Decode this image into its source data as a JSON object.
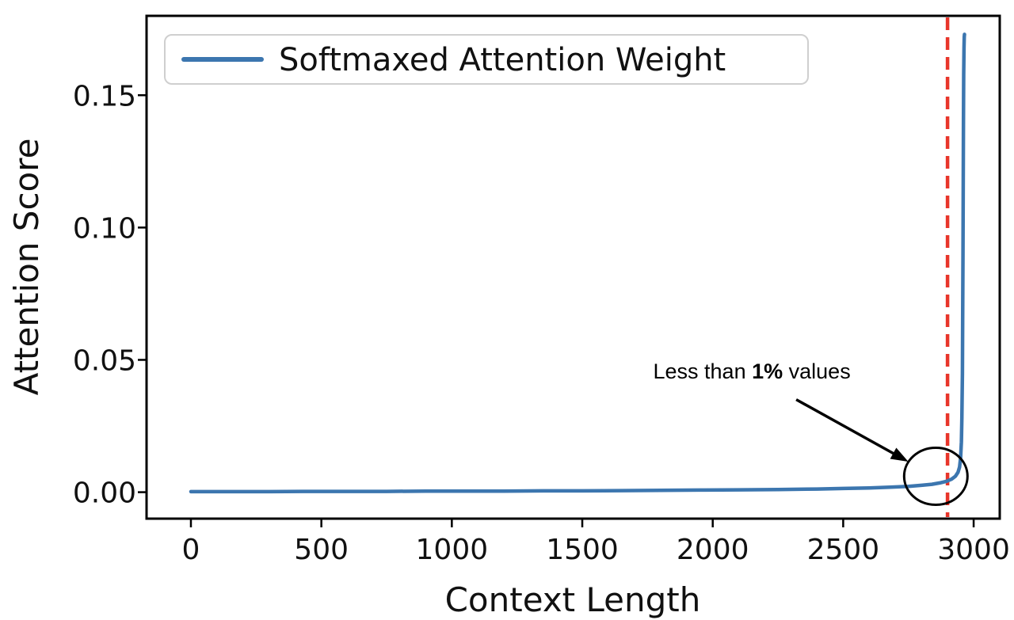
{
  "chart_data": {
    "type": "line",
    "title": "",
    "xlabel": "Context Length",
    "ylabel": "Attention Score",
    "xlim": [
      -170,
      3100
    ],
    "ylim": [
      -0.01,
      0.18
    ],
    "x_ticks": [
      0,
      500,
      1000,
      1500,
      2000,
      2500,
      3000
    ],
    "y_ticks": [
      0,
      0.05,
      0.1,
      0.15
    ],
    "y_tick_labels": [
      "0.00",
      "0.05",
      "0.10",
      "0.15"
    ],
    "grid": false,
    "background": "#ffffff",
    "axis_color": "#000000",
    "legend": {
      "position": "upper left",
      "entries": [
        {
          "label": "Softmaxed Attention Weight",
          "color": "#3c76af"
        }
      ]
    },
    "series": [
      {
        "name": "Softmaxed Attention Weight",
        "color": "#3c76af",
        "points": [
          [
            0,
            0.0002
          ],
          [
            150,
            0.0002
          ],
          [
            300,
            0.0002
          ],
          [
            450,
            0.0003
          ],
          [
            600,
            0.0003
          ],
          [
            750,
            0.0003
          ],
          [
            900,
            0.0004
          ],
          [
            1050,
            0.0004
          ],
          [
            1200,
            0.0004
          ],
          [
            1350,
            0.0005
          ],
          [
            1500,
            0.0005
          ],
          [
            1650,
            0.0006
          ],
          [
            1800,
            0.0007
          ],
          [
            1950,
            0.0008
          ],
          [
            2100,
            0.0009
          ],
          [
            2250,
            0.001
          ],
          [
            2400,
            0.0012
          ],
          [
            2500,
            0.0014
          ],
          [
            2600,
            0.0016
          ],
          [
            2680,
            0.0019
          ],
          [
            2750,
            0.0022
          ],
          [
            2800,
            0.0026
          ],
          [
            2840,
            0.003
          ],
          [
            2870,
            0.0035
          ],
          [
            2895,
            0.0041
          ],
          [
            2915,
            0.0049
          ],
          [
            2930,
            0.006
          ],
          [
            2940,
            0.0075
          ],
          [
            2946,
            0.0095
          ],
          [
            2950,
            0.013
          ],
          [
            2953,
            0.019
          ],
          [
            2955,
            0.028
          ],
          [
            2957,
            0.045
          ],
          [
            2958,
            0.065
          ],
          [
            2959,
            0.09
          ],
          [
            2960,
            0.115
          ],
          [
            2961,
            0.14
          ],
          [
            2962,
            0.158
          ],
          [
            2963,
            0.168
          ],
          [
            2964,
            0.172
          ],
          [
            2965,
            0.173
          ]
        ]
      }
    ],
    "vline": {
      "x": 2900,
      "color": "#e8352a",
      "style": "dashed"
    },
    "annotation": {
      "text_prefix": "Less than ",
      "text_bold": "1%",
      "text_suffix": " values",
      "text_xy": [
        2150,
        0.043
      ],
      "arrow_from": [
        2320,
        0.035
      ],
      "arrow_to": [
        2750,
        0.0115
      ],
      "circle_center": [
        2855,
        0.006
      ],
      "color": "#000000"
    }
  }
}
